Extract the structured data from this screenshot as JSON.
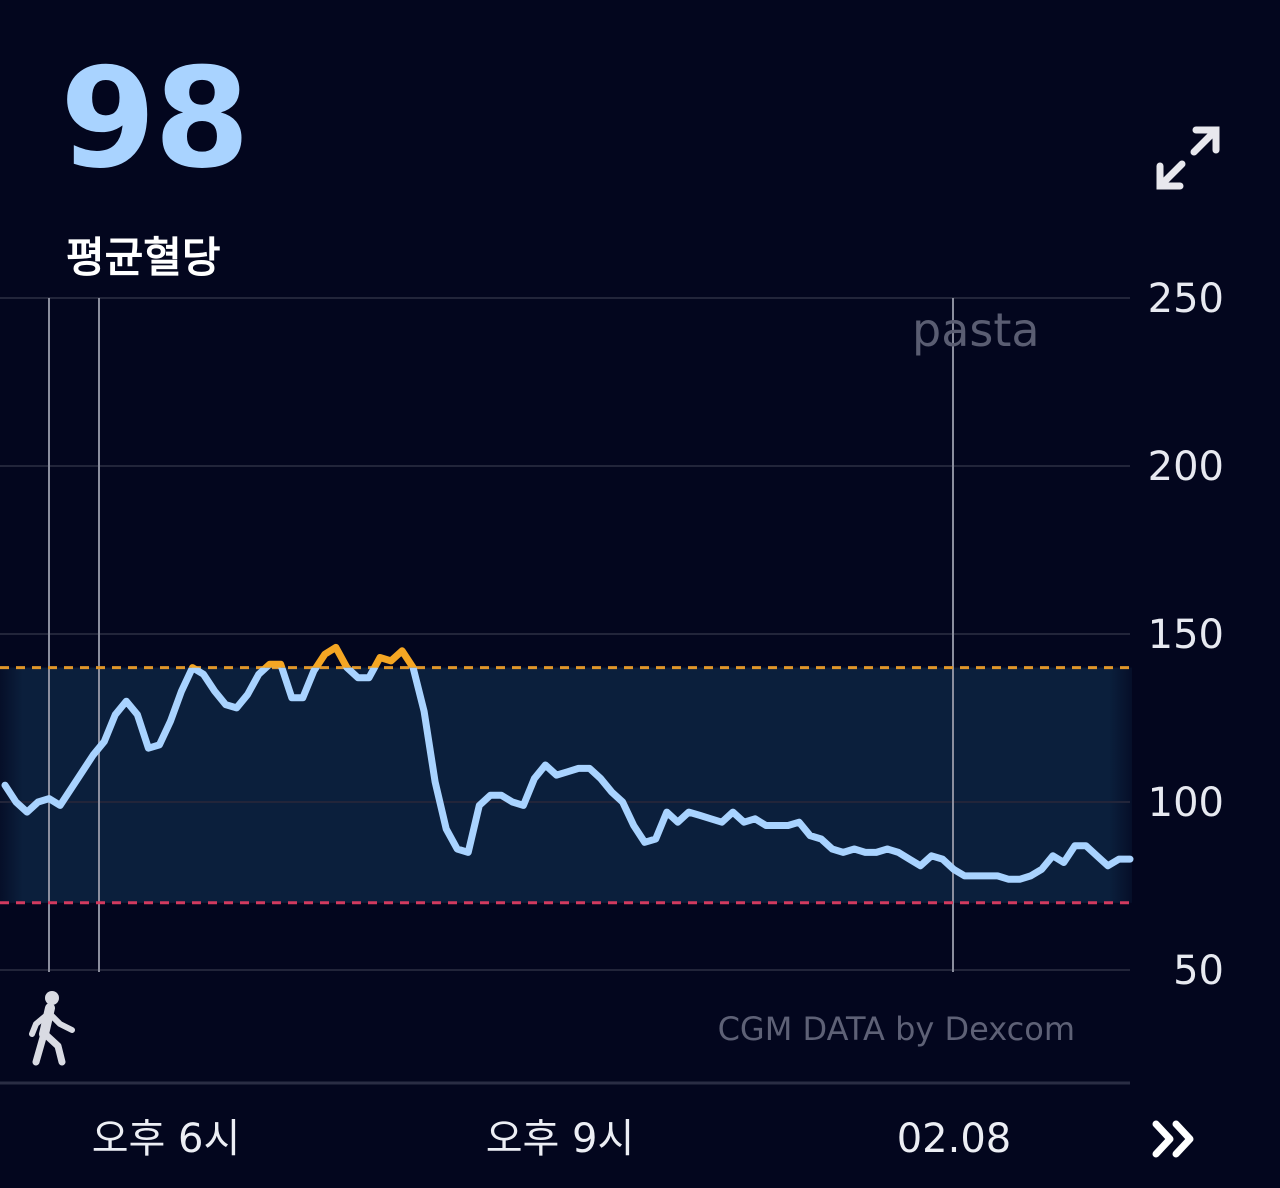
{
  "header": {
    "average_value": "98",
    "average_label": "평균혈당"
  },
  "watermark": "pasta",
  "attribution": "CGM DATA by Dexcom",
  "icons": {
    "expand": "expand-arrows-icon",
    "activity": "walking-person-icon",
    "next": "double-chevron-right-icon"
  },
  "colors": {
    "background": "#03061e",
    "line": "#a9d3ff",
    "high_line": "#f5a623",
    "high_threshold": "#e0962a",
    "low_threshold": "#d23a5f",
    "target_band": "#0b1f3c"
  },
  "chart_data": {
    "type": "line",
    "y_ticks": [
      "250",
      "200",
      "150",
      "100",
      "50"
    ],
    "ylim": [
      50,
      250
    ],
    "x_tick_labels": [
      "오후 6시",
      "오후 9시",
      "02.08"
    ],
    "target_range": {
      "low": 70,
      "high": 140
    },
    "grid": true,
    "series": [
      {
        "values": [
          105,
          100,
          97,
          100,
          101,
          99,
          104,
          109,
          114,
          118,
          126,
          130,
          126,
          116,
          117,
          124,
          133,
          140,
          138,
          133,
          129,
          128,
          132,
          138,
          141,
          141,
          131,
          131,
          139,
          144,
          146,
          140,
          137,
          137,
          143,
          142,
          145,
          140,
          127,
          106,
          92,
          86,
          85,
          99,
          102,
          102,
          100,
          99,
          107,
          111,
          108,
          109,
          110,
          110,
          107,
          103,
          100,
          93,
          88,
          89,
          97,
          94,
          97,
          96,
          95,
          94,
          97,
          94,
          95,
          93,
          93,
          93,
          94,
          90,
          89,
          86,
          85,
          86,
          85,
          85,
          86,
          85,
          83,
          81,
          84,
          83,
          80,
          78,
          78,
          78,
          78,
          77,
          77,
          78,
          80,
          84,
          82,
          87,
          87,
          84,
          81,
          83,
          83
        ]
      }
    ],
    "events": [
      {
        "type": "marker",
        "x_index": 0
      },
      {
        "type": "marker",
        "x_index": 4
      },
      {
        "type": "marker",
        "x_index": 86
      }
    ]
  }
}
